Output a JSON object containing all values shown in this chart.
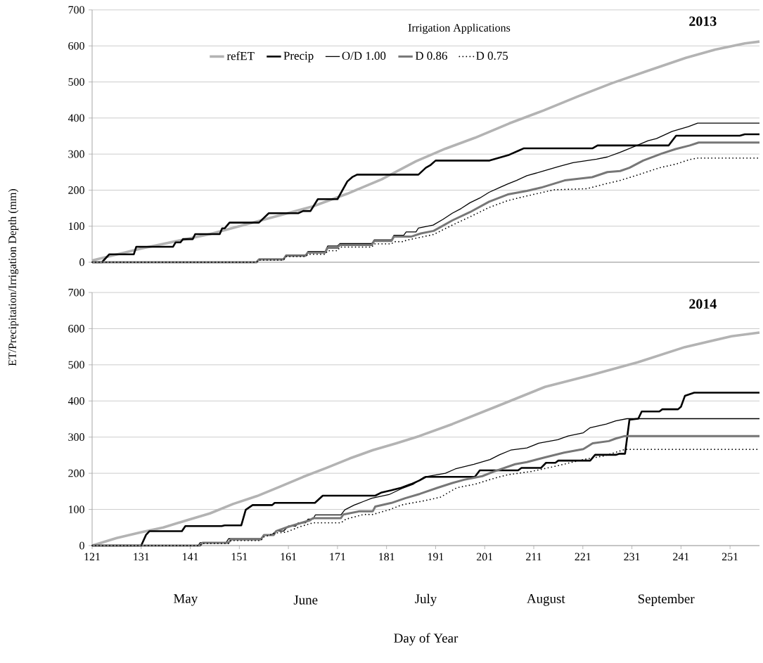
{
  "chart_data": [
    {
      "type": "line",
      "title": "2013",
      "ylabel": "ET/Precipitation/Irrigation Depth (mm)",
      "legend_title": "Irrigation Applications",
      "xlim": [
        121,
        257
      ],
      "ylim": [
        0,
        700
      ],
      "yticks": [
        0,
        100,
        200,
        300,
        400,
        500,
        600,
        700
      ],
      "grid": "y",
      "legend": "top",
      "marker": "none",
      "tick_labels": "y",
      "series": [
        {
          "name": "refET",
          "color": "#b3b3b3",
          "line_style": "solid",
          "x": [
            121,
            131,
            145,
            159,
            166,
            173,
            180,
            187,
            193,
            199,
            206,
            213,
            220,
            227,
            234,
            242,
            248,
            254,
            257
          ],
          "values": [
            5,
            38,
            78,
            129,
            155,
            190,
            230,
            280,
            315,
            345,
            385,
            421,
            460,
            497,
            530,
            567,
            590,
            607,
            612
          ]
        },
        {
          "name": "Precip",
          "color": "#000000",
          "line_style": "solid",
          "x": [
            121,
            123,
            124.5,
            129.5,
            130,
            137.5,
            138,
            139,
            139.5,
            141.5,
            142,
            147,
            147.5,
            148,
            149,
            155,
            157,
            163,
            164,
            165.5,
            167,
            171,
            173,
            174,
            175,
            187.5,
            189,
            190,
            191,
            202,
            204,
            206,
            208,
            209,
            223,
            224,
            238.5,
            240,
            253,
            254,
            257
          ],
          "values": [
            0,
            0,
            22,
            22,
            43,
            43,
            55,
            55,
            64,
            64,
            78,
            78,
            94,
            94,
            110,
            110,
            136,
            136,
            142,
            142,
            175,
            175,
            224,
            236,
            243,
            243,
            262,
            270,
            282,
            282,
            290,
            298,
            310,
            316,
            316,
            324,
            324,
            351,
            351,
            355,
            355
          ]
        },
        {
          "name": "O/D 1.00",
          "color": "#000000",
          "line_style": "solid",
          "x": [
            121,
            154.5,
            155,
            160,
            160.5,
            164.5,
            165,
            168.5,
            169,
            171,
            171.5,
            178,
            178.5,
            182,
            182.5,
            184.5,
            185,
            187,
            187.5,
            190.5,
            192.5,
            194.4,
            196.2,
            198,
            200,
            201.9,
            204,
            205.7,
            207.5,
            209.6,
            213,
            216.2,
            219,
            223.8,
            226,
            228.6,
            231.5,
            234.3,
            236,
            239.2,
            242.5,
            244.4,
            257
          ],
          "values": [
            0,
            0,
            9,
            9,
            20,
            20,
            30,
            30,
            45,
            45,
            52,
            52,
            62,
            62,
            75,
            75,
            84,
            84,
            95,
            103,
            119,
            136,
            149,
            165,
            178,
            194,
            207,
            217,
            227,
            240,
            253,
            266,
            276,
            286,
            292,
            305,
            321,
            337,
            343,
            363,
            376,
            386,
            386
          ]
        },
        {
          "name": "D 0.86",
          "color": "#777777",
          "line_style": "solid",
          "x": [
            121,
            154.5,
            155,
            160,
            160.5,
            164.5,
            165,
            168.5,
            169,
            171,
            171.5,
            178,
            178.5,
            182,
            182.5,
            186,
            188,
            190.6,
            194.4,
            198,
            201.9,
            205.7,
            209.6,
            212.5,
            217.3,
            222.9,
            226,
            228.6,
            230.5,
            233.3,
            237,
            239.9,
            242.8,
            244.6,
            257
          ],
          "values": [
            0,
            0,
            8,
            8,
            18,
            18,
            27,
            27,
            40,
            40,
            48,
            48,
            59,
            59,
            71,
            71,
            80,
            87,
            116,
            139,
            168,
            188,
            198,
            207,
            227,
            236,
            250,
            253,
            262,
            282,
            301,
            314,
            324,
            332,
            332
          ]
        },
        {
          "name": "D 0.75",
          "color": "#000000",
          "line_style": "dotted",
          "x": [
            121,
            154.5,
            155,
            160,
            160.5,
            164.5,
            165,
            168.5,
            169,
            171,
            171.5,
            178,
            178.5,
            182,
            182.5,
            184.5,
            185,
            190.6,
            194.4,
            198,
            201.9,
            205.7,
            209.6,
            215.2,
            221.8,
            225.5,
            228.6,
            232.4,
            236.6,
            239.9,
            242.8,
            244.4,
            257
          ],
          "values": [
            0,
            0,
            6,
            6,
            16,
            16,
            22,
            22,
            32,
            32,
            42,
            42,
            51,
            51,
            57,
            57,
            61,
            77,
            103,
            126,
            152,
            171,
            184,
            201,
            204,
            217,
            227,
            243,
            262,
            272,
            285,
            289,
            289
          ]
        }
      ]
    },
    {
      "type": "line",
      "title": "2014",
      "xlabel": "Day of Year",
      "annotations": [
        "May",
        "June",
        "July",
        "August",
        "September"
      ],
      "xlim": [
        121,
        257
      ],
      "ylim": [
        0,
        700
      ],
      "xticks": [
        121,
        131,
        141,
        151,
        161,
        171,
        181,
        191,
        201,
        211,
        221,
        231,
        241,
        251
      ],
      "yticks": [
        0,
        100,
        200,
        300,
        400,
        500,
        600,
        700
      ],
      "grid": "y",
      "marker": "none",
      "series": [
        {
          "color": "#b3b3b3",
          "line_style": "solid",
          "x": [
            121,
            126,
            131,
            135.5,
            140.3,
            145,
            149.7,
            154.6,
            159.3,
            164,
            168.8,
            173.5,
            178.2,
            183,
            187.7,
            194.4,
            203.8,
            213.3,
            222.8,
            232.2,
            241.8,
            251.3,
            257
          ],
          "values": [
            0,
            21,
            37,
            50,
            70,
            89,
            115,
            137,
            163,
            190,
            215,
            241,
            264,
            283,
            303,
            336,
            387,
            439,
            472,
            507,
            549,
            579,
            589
          ]
        },
        {
          "color": "#000000",
          "line_style": "solid",
          "x": [
            121,
            131,
            132,
            132.7,
            139.3,
            140,
            147.4,
            148,
            151.4,
            152.3,
            153.7,
            157.7,
            158.2,
            166.4,
            168,
            178.7,
            180,
            182,
            184,
            186,
            187.7,
            189,
            199,
            200,
            207.8,
            208.5,
            212.5,
            213.5,
            215.4,
            216,
            222.5,
            223.5,
            227.7,
            228.5,
            229.6,
            230.5,
            232.3,
            233,
            236.6,
            237.2,
            240.4,
            241,
            241.8,
            243.7,
            257
          ],
          "values": [
            0,
            0,
            30,
            40,
            40,
            54,
            54,
            56,
            56,
            99,
            112,
            112,
            118,
            118,
            138,
            138,
            147,
            153,
            160,
            170,
            180,
            190,
            190,
            208,
            208,
            215,
            215,
            229,
            229,
            235,
            235,
            251,
            251,
            254,
            254,
            348,
            351,
            371,
            371,
            377,
            377,
            384,
            414,
            423,
            423
          ]
        },
        {
          "color": "#000000",
          "line_style": "solid",
          "x": [
            121,
            142.6,
            143,
            148.3,
            148.8,
            155.4,
            156,
            157.5,
            158.5,
            160,
            161,
            162.5,
            163,
            164.5,
            165,
            166,
            166.5,
            171.7,
            172.5,
            174.4,
            176.3,
            178,
            181.5,
            184,
            186.5,
            188.7,
            193,
            195,
            198.8,
            202.1,
            204,
            206.3,
            209.6,
            212,
            215.9,
            218,
            221.1,
            222.5,
            225.8,
            227.7,
            230,
            257
          ],
          "values": [
            0,
            0,
            8,
            8,
            19,
            19,
            29,
            29,
            40,
            40,
            54,
            54,
            63,
            63,
            73,
            73,
            85,
            85,
            99,
            112,
            122,
            131,
            141,
            157,
            170,
            190,
            200,
            212,
            225,
            238,
            251,
            264,
            270,
            283,
            293,
            303,
            312,
            326,
            336,
            345,
            351,
            351
          ]
        },
        {
          "color": "#777777",
          "line_style": "solid",
          "x": [
            121,
            143,
            143.5,
            148.8,
            149.3,
            155.4,
            156,
            158,
            158.5,
            161,
            165.4,
            166,
            171.7,
            172.2,
            175.5,
            178.2,
            178.7,
            182,
            184.8,
            187.8,
            191.4,
            194.4,
            196.8,
            200.5,
            202.9,
            207.2,
            209.6,
            213.3,
            217.2,
            221.1,
            223,
            226.3,
            227.7,
            229.6,
            257
          ],
          "values": [
            0,
            0,
            8,
            8,
            17,
            17,
            29,
            29,
            40,
            52,
            70,
            76,
            76,
            86,
            95,
            95,
            108,
            118,
            131,
            143,
            160,
            173,
            182,
            192,
            205,
            225,
            231,
            244,
            257,
            267,
            283,
            289,
            296,
            303,
            303
          ]
        },
        {
          "color": "#000000",
          "line_style": "dotted",
          "x": [
            121,
            143,
            143.5,
            148.8,
            149.3,
            155.4,
            156,
            158.5,
            160.5,
            163.3,
            166,
            171.7,
            172.7,
            176.3,
            178.2,
            181.5,
            184,
            185,
            188.7,
            192,
            195.3,
            199.1,
            202.9,
            205.7,
            210.5,
            215.9,
            221.1,
            225.3,
            229.6,
            257
          ],
          "values": [
            0,
            0,
            6,
            6,
            14,
            14,
            24,
            35,
            37,
            52,
            63,
            63,
            73,
            86,
            86,
            99,
            112,
            115,
            124,
            134,
            160,
            170,
            186,
            196,
            205,
            221,
            238,
            248,
            266,
            266
          ]
        }
      ]
    }
  ]
}
